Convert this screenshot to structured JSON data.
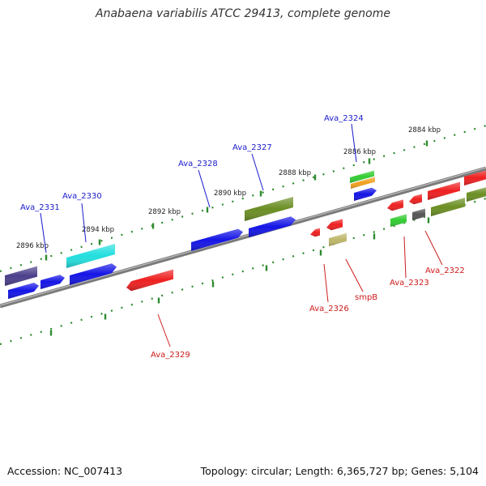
{
  "title": "Anabaena variabilis ATCC 29413, complete genome",
  "footer": {
    "accession": "Accession: NC_007413",
    "topology": "Topology: circular; Length: 6,365,727 bp; Genes: 5,104"
  },
  "scale_labels": [
    "2896 kbp",
    "2894 kbp",
    "2892 kbp",
    "2890 kbp",
    "2888 kbp",
    "2886 kbp",
    "2884 kbp"
  ],
  "gene_labels_forward": [
    "Ava_2331",
    "Ava_2330",
    "Ava_2328",
    "Ava_2327",
    "Ava_2324"
  ],
  "gene_labels_reverse": [
    "Ava_2329",
    "Ava_2326",
    "smpB",
    "Ava_2323",
    "Ava_2322"
  ],
  "colors": {
    "forward_label": "#1a1acc",
    "reverse_label": "#cc1a1a",
    "backbone": "#808080",
    "ticks": "#2e8b2e"
  }
}
